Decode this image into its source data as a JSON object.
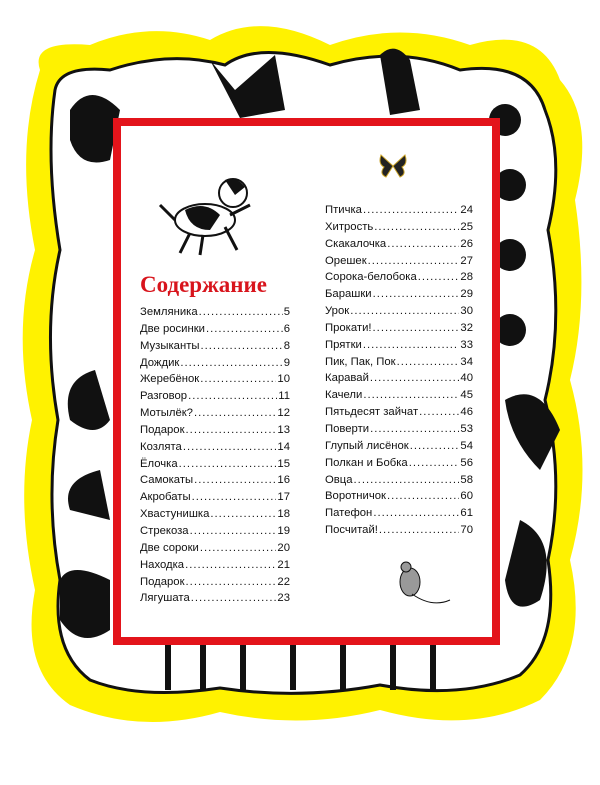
{
  "title": "Содержание",
  "colors": {
    "frame": "#e3141b",
    "title": "#d8141c",
    "background_blob": "#fff200"
  },
  "left_column": [
    {
      "title": "Земляника",
      "page": "5"
    },
    {
      "title": "Две росинки",
      "page": "6"
    },
    {
      "title": "Музыканты",
      "page": "8"
    },
    {
      "title": "Дождик",
      "page": "9"
    },
    {
      "title": "Жеребёнок",
      "page": "10"
    },
    {
      "title": "Разговор",
      "page": "11"
    },
    {
      "title": "Мотылёк?",
      "page": "12"
    },
    {
      "title": "Подарок",
      "page": "13"
    },
    {
      "title": "Козлята",
      "page": "14"
    },
    {
      "title": "Ёлочка",
      "page": "15"
    },
    {
      "title": "Самокаты",
      "page": "16"
    },
    {
      "title": "Акробаты",
      "page": "17"
    },
    {
      "title": "Хвастунишка",
      "page": "18"
    },
    {
      "title": "Стрекоза",
      "page": "19"
    },
    {
      "title": "Две сороки",
      "page": "20"
    },
    {
      "title": "Находка",
      "page": "21"
    },
    {
      "title": "Подарок",
      "page": "22"
    },
    {
      "title": "Лягушата",
      "page": "23"
    }
  ],
  "right_column": [
    {
      "title": "Птичка",
      "page": "24"
    },
    {
      "title": "Хитрость",
      "page": "25"
    },
    {
      "title": "Скакалочка",
      "page": "26"
    },
    {
      "title": "Орешек",
      "page": "27"
    },
    {
      "title": "Сорока-белобока",
      "page": "28"
    },
    {
      "title": "Барашки",
      "page": "29"
    },
    {
      "title": "Урок",
      "page": "30"
    },
    {
      "title": "Прокати!",
      "page": "32"
    },
    {
      "title": "Прятки",
      "page": "33"
    },
    {
      "title": "Пик, Пак, Пок",
      "page": "34"
    },
    {
      "title": "Каравай",
      "page": "40"
    },
    {
      "title": "Качели",
      "page": "45"
    },
    {
      "title": "Пятьдесят зайчат",
      "page": "46"
    },
    {
      "title": "Поверти",
      "page": "53"
    },
    {
      "title": "Глупый лисёнок",
      "page": "54"
    },
    {
      "title": "Полкан и Бобка",
      "page": "56"
    },
    {
      "title": "Овца",
      "page": "58"
    },
    {
      "title": "Воротничок",
      "page": "60"
    },
    {
      "title": "Патефон",
      "page": "61"
    },
    {
      "title": "Посчитай!",
      "page": "70"
    }
  ],
  "illustrations": [
    "animal-border-illustration",
    "puppy-illustration",
    "butterfly-illustration",
    "mouse-illustration"
  ]
}
